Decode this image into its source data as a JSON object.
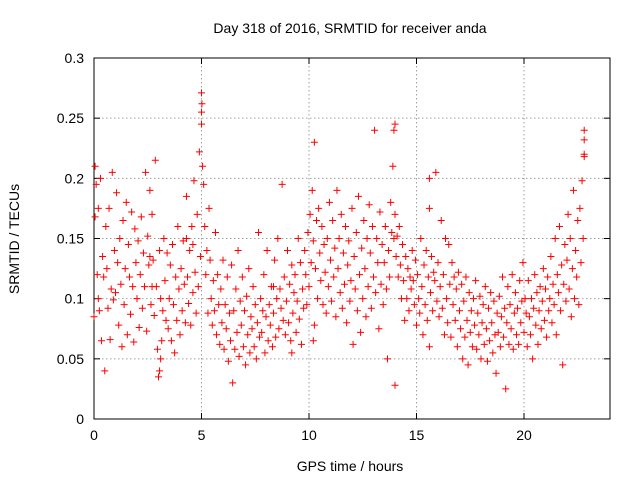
{
  "chart_data": {
    "type": "scatter",
    "title": "Day 318 of 2016, SRMTID for receiver anda",
    "xlabel": "GPS time / hours",
    "ylabel": "SRMTID / TECUs",
    "xlim": [
      0,
      24
    ],
    "ylim": [
      0,
      0.3
    ],
    "xticks": [
      0,
      5,
      10,
      15,
      20
    ],
    "xtick_labels": [
      "0",
      "5",
      "10",
      "15",
      "20"
    ],
    "yticks": [
      0,
      0.05,
      0.1,
      0.15,
      0.2,
      0.25,
      0.3
    ],
    "ytick_labels": [
      "0",
      "0.05",
      "0.1",
      "0.15",
      "0.2",
      "0.25",
      "0.3"
    ],
    "grid": true,
    "marker": "plus",
    "color": "#ff0000",
    "series": [
      {
        "name": "SRMTID",
        "x": [
          0.0,
          0.05,
          0.1,
          0.15,
          0.2,
          0.25,
          0.3,
          0.35,
          0.4,
          0.45,
          0.5,
          0.55,
          0.6,
          0.65,
          0.7,
          0.75,
          0.8,
          0.85,
          0.9,
          0.95,
          1.0,
          1.05,
          1.1,
          1.15,
          1.2,
          1.25,
          1.3,
          1.35,
          1.4,
          1.45,
          1.5,
          1.55,
          1.6,
          1.65,
          1.7,
          1.75,
          1.8,
          1.85,
          1.9,
          1.95,
          2.0,
          2.05,
          2.1,
          2.15,
          2.2,
          2.25,
          2.3,
          2.35,
          2.4,
          2.45,
          2.5,
          2.55,
          2.6,
          2.65,
          2.7,
          2.75,
          2.8,
          2.85,
          2.9,
          2.95,
          3.0,
          3.05,
          3.1,
          3.15,
          3.2,
          3.25,
          3.3,
          3.35,
          3.4,
          3.45,
          3.5,
          3.55,
          3.6,
          3.65,
          3.7,
          3.75,
          3.8,
          3.85,
          3.9,
          3.95,
          4.0,
          4.05,
          4.1,
          4.15,
          4.2,
          4.25,
          4.3,
          4.35,
          4.4,
          4.45,
          4.5,
          4.55,
          4.6,
          4.65,
          4.7,
          4.75,
          4.8,
          4.85,
          4.9,
          4.95,
          5.0,
          5.0,
          5.0,
          5.02,
          5.05,
          5.1,
          5.15,
          5.2,
          5.25,
          5.3,
          5.35,
          5.4,
          5.45,
          5.5,
          5.55,
          5.6,
          5.65,
          5.7,
          5.75,
          5.8,
          5.85,
          5.9,
          5.95,
          6.0,
          6.05,
          6.1,
          6.15,
          6.2,
          6.25,
          6.3,
          6.35,
          6.4,
          6.45,
          6.5,
          6.55,
          6.6,
          6.65,
          6.7,
          6.75,
          6.8,
          6.85,
          6.9,
          6.95,
          7.0,
          7.05,
          7.1,
          7.15,
          7.2,
          7.25,
          7.3,
          7.35,
          7.4,
          7.45,
          7.5,
          7.55,
          7.6,
          7.65,
          7.7,
          7.75,
          7.8,
          7.85,
          7.9,
          7.95,
          8.0,
          8.05,
          8.1,
          8.15,
          8.2,
          8.25,
          8.3,
          8.35,
          8.4,
          8.45,
          8.5,
          8.55,
          8.6,
          8.65,
          8.7,
          8.75,
          8.8,
          8.85,
          8.9,
          8.95,
          9.0,
          9.05,
          9.1,
          9.15,
          9.2,
          9.25,
          9.3,
          9.35,
          9.4,
          9.45,
          9.5,
          9.55,
          9.6,
          9.65,
          9.7,
          9.75,
          9.8,
          9.85,
          9.9,
          9.95,
          10.0,
          10.05,
          10.1,
          10.15,
          10.2,
          10.25,
          10.3,
          10.35,
          10.4,
          10.45,
          10.5,
          10.55,
          10.6,
          10.65,
          10.7,
          10.75,
          10.8,
          10.85,
          10.9,
          10.95,
          11.0,
          11.05,
          11.1,
          11.15,
          11.2,
          11.25,
          11.3,
          11.35,
          11.4,
          11.45,
          11.5,
          11.55,
          11.6,
          11.65,
          11.7,
          11.75,
          11.8,
          11.85,
          11.9,
          11.95,
          12.0,
          12.05,
          12.1,
          12.15,
          12.2,
          12.25,
          12.3,
          12.35,
          12.4,
          12.45,
          12.5,
          12.55,
          12.6,
          12.65,
          12.7,
          12.75,
          12.8,
          12.85,
          12.9,
          12.95,
          13.0,
          13.05,
          13.1,
          13.15,
          13.2,
          13.25,
          13.3,
          13.35,
          13.4,
          13.45,
          13.5,
          13.55,
          13.6,
          13.65,
          13.7,
          13.75,
          13.8,
          13.85,
          13.9,
          13.95,
          14.0,
          14.05,
          14.1,
          14.15,
          14.2,
          14.25,
          14.3,
          14.35,
          14.4,
          14.45,
          14.5,
          14.55,
          14.6,
          14.65,
          14.7,
          14.75,
          14.8,
          14.85,
          14.9,
          14.95,
          15.0,
          15.05,
          15.1,
          15.15,
          15.2,
          15.25,
          15.3,
          15.35,
          15.4,
          15.45,
          15.5,
          15.55,
          15.6,
          15.65,
          15.7,
          15.75,
          15.8,
          15.85,
          15.9,
          15.95,
          16.0,
          16.05,
          16.1,
          16.15,
          16.2,
          16.25,
          16.3,
          16.35,
          16.4,
          16.45,
          16.5,
          16.55,
          16.6,
          16.65,
          16.7,
          16.75,
          16.8,
          16.85,
          16.9,
          16.95,
          17.0,
          17.05,
          17.1,
          17.15,
          17.2,
          17.25,
          17.3,
          17.35,
          17.4,
          17.45,
          17.5,
          17.55,
          17.6,
          17.65,
          17.7,
          17.75,
          17.8,
          17.85,
          17.9,
          17.95,
          18.0,
          18.05,
          18.1,
          18.15,
          18.2,
          18.25,
          18.3,
          18.35,
          18.4,
          18.45,
          18.5,
          18.55,
          18.6,
          18.65,
          18.7,
          18.75,
          18.8,
          18.85,
          18.9,
          18.95,
          19.0,
          19.05,
          19.1,
          19.15,
          19.2,
          19.25,
          19.3,
          19.35,
          19.4,
          19.45,
          19.5,
          19.55,
          19.6,
          19.65,
          19.7,
          19.75,
          19.8,
          19.85,
          19.9,
          19.95,
          20.0,
          20.05,
          20.1,
          20.15,
          20.2,
          20.25,
          20.3,
          20.35,
          20.4,
          20.45,
          20.5,
          20.55,
          20.6,
          20.65,
          20.7,
          20.75,
          20.8,
          20.85,
          20.9,
          20.95,
          21.0,
          21.05,
          21.1,
          21.15,
          21.2,
          21.25,
          21.3,
          21.35,
          21.4,
          21.45,
          21.5,
          21.55,
          21.6,
          21.65,
          21.7,
          21.75,
          21.8,
          21.85,
          21.9,
          21.95,
          22.0,
          22.05,
          22.1,
          22.15,
          22.2,
          22.25,
          22.3,
          22.35,
          22.4,
          22.45,
          22.5,
          22.55,
          22.6,
          22.65,
          22.7,
          22.75,
          22.8,
          14.0,
          14.0,
          13.95,
          2.6,
          2.7,
          3.05,
          3.1,
          15.6,
          15.6,
          22.8,
          22.8,
          22.8,
          10.2,
          10.25,
          8.35,
          9.2,
          4.3,
          4.6,
          0.2,
          0.05
        ],
        "y": [
          0.085,
          0.168,
          0.195,
          0.12,
          0.1,
          0.09,
          0.2,
          0.065,
          0.135,
          0.118,
          0.04,
          0.16,
          0.125,
          0.092,
          0.175,
          0.066,
          0.108,
          0.205,
          0.099,
          0.14,
          0.105,
          0.188,
          0.13,
          0.078,
          0.15,
          0.112,
          0.06,
          0.165,
          0.095,
          0.125,
          0.18,
          0.07,
          0.145,
          0.118,
          0.087,
          0.172,
          0.11,
          0.064,
          0.158,
          0.13,
          0.1,
          0.148,
          0.076,
          0.12,
          0.168,
          0.092,
          0.138,
          0.11,
          0.205,
          0.073,
          0.152,
          0.128,
          0.19,
          0.095,
          0.17,
          0.132,
          0.086,
          0.215,
          0.11,
          0.058,
          0.035,
          0.14,
          0.1,
          0.065,
          0.09,
          0.15,
          0.115,
          0.082,
          0.138,
          0.075,
          0.1,
          0.128,
          0.065,
          0.145,
          0.095,
          0.055,
          0.118,
          0.082,
          0.16,
          0.108,
          0.07,
          0.125,
          0.09,
          0.148,
          0.112,
          0.08,
          0.185,
          0.118,
          0.096,
          0.14,
          0.078,
          0.16,
          0.105,
          0.198,
          0.122,
          0.088,
          0.17,
          0.11,
          0.222,
          0.135,
          0.271,
          0.255,
          0.245,
          0.262,
          0.21,
          0.195,
          0.16,
          0.12,
          0.14,
          0.088,
          0.175,
          0.132,
          0.1,
          0.078,
          0.115,
          0.09,
          0.155,
          0.07,
          0.12,
          0.095,
          0.062,
          0.108,
          0.08,
          0.132,
          0.058,
          0.095,
          0.075,
          0.118,
          0.048,
          0.088,
          0.065,
          0.128,
          0.03,
          0.09,
          0.058,
          0.108,
          0.072,
          0.14,
          0.052,
          0.098,
          0.078,
          0.118,
          0.06,
          0.09,
          0.045,
          0.102,
          0.07,
          0.125,
          0.055,
          0.085,
          0.075,
          0.11,
          0.06,
          0.095,
          0.05,
          0.08,
          0.155,
          0.068,
          0.1,
          0.072,
          0.09,
          0.12,
          0.055,
          0.085,
          0.14,
          0.065,
          0.095,
          0.078,
          0.11,
          0.06,
          0.088,
          0.132,
          0.068,
          0.1,
          0.15,
          0.075,
          0.108,
          0.092,
          0.195,
          0.082,
          0.118,
          0.07,
          0.098,
          0.14,
          0.08,
          0.112,
          0.065,
          0.128,
          0.088,
          0.105,
          0.12,
          0.072,
          0.098,
          0.15,
          0.083,
          0.13,
          0.062,
          0.108,
          0.092,
          0.14,
          0.12,
          0.095,
          0.155,
          0.11,
          0.17,
          0.13,
          0.19,
          0.148,
          0.23,
          0.125,
          0.165,
          0.1,
          0.175,
          0.138,
          0.115,
          0.16,
          0.095,
          0.145,
          0.122,
          0.088,
          0.15,
          0.11,
          0.18,
          0.132,
          0.098,
          0.165,
          0.118,
          0.142,
          0.085,
          0.19,
          0.125,
          0.15,
          0.105,
          0.17,
          0.092,
          0.138,
          0.112,
          0.16,
          0.08,
          0.128,
          0.148,
          0.098,
          0.115,
          0.175,
          0.062,
          0.135,
          0.108,
          0.155,
          0.09,
          0.185,
          0.12,
          0.072,
          0.142,
          0.1,
          0.165,
          0.125,
          0.085,
          0.15,
          0.11,
          0.178,
          0.138,
          0.092,
          0.16,
          0.118,
          0.24,
          0.105,
          0.15,
          0.13,
          0.075,
          0.172,
          0.112,
          0.145,
          0.095,
          0.13,
          0.16,
          0.108,
          0.05,
          0.14,
          0.118,
          0.18,
          0.155,
          0.21,
          0.24,
          0.17,
          0.135,
          0.152,
          0.118,
          0.16,
          0.128,
          0.1,
          0.145,
          0.115,
          0.082,
          0.135,
          0.1,
          0.125,
          0.09,
          0.118,
          0.108,
          0.14,
          0.115,
          0.095,
          0.132,
          0.078,
          0.12,
          0.1,
          0.088,
          0.15,
          0.11,
          0.07,
          0.128,
          0.095,
          0.14,
          0.082,
          0.118,
          0.06,
          0.105,
          0.135,
          0.09,
          0.122,
          0.115,
          0.205,
          0.098,
          0.13,
          0.085,
          0.11,
          0.165,
          0.092,
          0.12,
          0.07,
          0.15,
          0.1,
          0.08,
          0.145,
          0.112,
          0.068,
          0.13,
          0.095,
          0.118,
          0.082,
          0.108,
          0.06,
          0.122,
          0.09,
          0.075,
          0.112,
          0.05,
          0.098,
          0.068,
          0.118,
          0.082,
          0.045,
          0.105,
          0.072,
          0.09,
          0.06,
          0.1,
          0.078,
          0.115,
          0.058,
          0.088,
          0.07,
          0.102,
          0.05,
          0.08,
          0.095,
          0.062,
          0.11,
          0.075,
          0.048,
          0.092,
          0.065,
          0.105,
          0.08,
          0.055,
          0.098,
          0.07,
          0.038,
          0.088,
          0.072,
          0.102,
          0.06,
          0.085,
          0.118,
          0.068,
          0.092,
          0.025,
          0.08,
          0.11,
          0.062,
          0.095,
          0.075,
          0.12,
          0.058,
          0.088,
          0.105,
          0.07,
          0.092,
          0.062,
          0.115,
          0.08,
          0.098,
          0.13,
          0.072,
          0.1,
          0.088,
          0.06,
          0.115,
          0.085,
          0.07,
          0.1,
          0.05,
          0.092,
          0.12,
          0.078,
          0.105,
          0.062,
          0.09,
          0.11,
          0.075,
          0.098,
          0.125,
          0.082,
          0.108,
          0.068,
          0.118,
          0.09,
          0.1,
          0.135,
          0.08,
          0.112,
          0.095,
          0.15,
          0.07,
          0.12,
          0.105,
          0.16,
          0.09,
          0.128,
          0.045,
          0.112,
          0.145,
          0.098,
          0.132,
          0.17,
          0.108,
          0.15,
          0.085,
          0.125,
          0.19,
          0.1,
          0.14,
          0.118,
          0.165,
          0.095,
          0.175,
          0.13,
          0.198,
          0.15,
          0.22,
          0.028,
          0.245,
          0.15,
          0.135,
          0.11,
          0.04,
          0.05,
          0.2,
          0.175,
          0.24,
          0.218,
          0.232,
          0.065,
          0.078,
          0.11,
          0.055,
          0.15,
          0.145,
          0.175,
          0.21
        ]
      }
    ]
  }
}
